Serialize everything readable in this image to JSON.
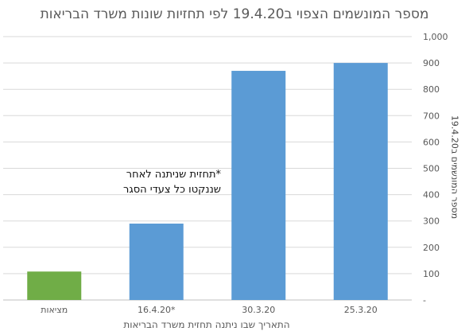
{
  "chart_data": {
    "type": "bar",
    "title": "מספר המונשמים הצפוי ב19.4.20 לפי תחזיות שונות משרד הבריאות",
    "xlabel": "התאריך שבו ניתנה תחזית משרד הבריאות",
    "ylabel": "מספר המונשמים ב19.4.20",
    "categories": [
      "מציאות",
      "16.4.20*",
      "30.3.20",
      "25.3.20"
    ],
    "values": [
      108,
      290,
      870,
      900
    ],
    "bar_colors": [
      "#70ad47",
      "#5b9bd5",
      "#5b9bd5",
      "#5b9bd5"
    ],
    "ylim": [
      0,
      1000
    ],
    "yticks": [
      0,
      100,
      200,
      300,
      400,
      500,
      600,
      700,
      800,
      900,
      1000
    ],
    "ytick_labels": [
      "-",
      "100",
      "200",
      "300",
      "400",
      "500",
      "600",
      "700",
      "800",
      "900",
      "1,000"
    ],
    "y_axis_side": "right",
    "grid": true,
    "annotation": {
      "lines": [
        "*תחזית שניתנה לאחר",
        "שננקטו כל צעדי הסגר"
      ]
    }
  }
}
